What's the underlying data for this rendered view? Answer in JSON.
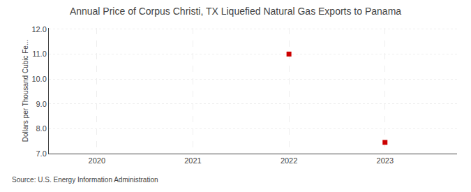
{
  "chart_data": {
    "type": "scatter",
    "title": "Annual Price of Corpus Christi, TX Liquefied Natural Gas Exports to Panama",
    "ylabel": "Dollars per Thousand Cubic Fe...",
    "annotations": [
      "Source: U.S. Energy Information Administration"
    ],
    "x": [
      2022,
      2023
    ],
    "values": [
      11.0,
      7.45
    ],
    "color": "#cc0000",
    "marker": "square",
    "xlim": [
      2019.5,
      2023.75
    ],
    "xticks": [
      2020,
      2021,
      2022,
      2023
    ],
    "ylim": [
      7.0,
      12.05
    ],
    "yticks": [
      {
        "value": 7.0,
        "label": "7.0"
      },
      {
        "value": 8.0,
        "label": "8.0"
      },
      {
        "value": 9.0,
        "label": "9.0"
      },
      {
        "value": 10.0,
        "label": "10.0"
      },
      {
        "value": 11.0,
        "label": "11.0"
      },
      {
        "value": 12.0,
        "label": "12.0"
      }
    ],
    "grid": true
  }
}
